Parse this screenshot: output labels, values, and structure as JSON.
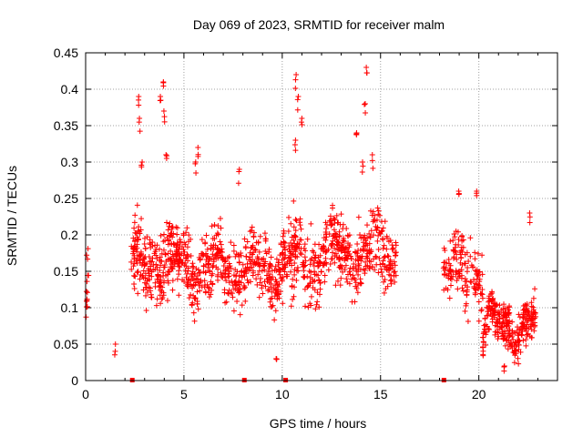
{
  "chart_data": {
    "type": "scatter",
    "title": "Day 069 of 2023, SRMTID for receiver malm",
    "xlabel": "GPS time / hours",
    "ylabel": "SRMTID / TECUs",
    "xlim": [
      0,
      24
    ],
    "ylim": [
      0,
      0.45
    ],
    "grid": true,
    "marker": "+",
    "marker_color": "#ff0000",
    "x_ticks": [
      0,
      5,
      10,
      15,
      20
    ],
    "x_tick_labels": [
      "0",
      "5",
      "10",
      "15",
      "20"
    ],
    "y_ticks": [
      0,
      0.05,
      0.1,
      0.15,
      0.2,
      0.25,
      0.3,
      0.35,
      0.4,
      0.45
    ],
    "y_tick_labels": [
      "0",
      "0.05",
      "0.1",
      "0.15",
      "0.2",
      "0.25",
      "0.3",
      "0.35",
      "0.4",
      "0.45"
    ],
    "baseline_markers_x": [
      2.35,
      8.05,
      10.15,
      18.2
    ],
    "segments": [
      {
        "x_start": 0.0,
        "x_end": 0.15,
        "y_mean": 0.12,
        "y_spread": 0.045,
        "n": 14
      },
      {
        "x_start": 2.3,
        "x_end": 5.2,
        "y_mean": 0.16,
        "y_spread": 0.05,
        "n": 300
      },
      {
        "x_start": 5.2,
        "x_end": 10.0,
        "y_mean": 0.155,
        "y_spread": 0.045,
        "n": 420
      },
      {
        "x_start": 10.0,
        "x_end": 12.0,
        "y_mean": 0.16,
        "y_spread": 0.05,
        "n": 180
      },
      {
        "x_start": 12.0,
        "x_end": 15.8,
        "y_mean": 0.175,
        "y_spread": 0.045,
        "n": 340
      },
      {
        "x_start": 18.2,
        "x_end": 20.2,
        "y_mean": 0.15,
        "y_spread": 0.045,
        "n": 150
      },
      {
        "x_start": 20.2,
        "x_end": 22.9,
        "y_mean": 0.075,
        "y_spread": 0.03,
        "n": 300
      }
    ],
    "highlights": [
      {
        "x": 1.5,
        "y": 0.05
      },
      {
        "x": 2.45,
        "y": 0.18
      },
      {
        "x": 2.7,
        "y": 0.39
      },
      {
        "x": 2.75,
        "y": 0.36
      },
      {
        "x": 2.85,
        "y": 0.3
      },
      {
        "x": 3.8,
        "y": 0.39
      },
      {
        "x": 3.95,
        "y": 0.41
      },
      {
        "x": 4.0,
        "y": 0.37
      },
      {
        "x": 4.1,
        "y": 0.31
      },
      {
        "x": 5.7,
        "y": 0.32
      },
      {
        "x": 5.6,
        "y": 0.3
      },
      {
        "x": 7.8,
        "y": 0.29
      },
      {
        "x": 10.7,
        "y": 0.42
      },
      {
        "x": 10.8,
        "y": 0.39
      },
      {
        "x": 10.65,
        "y": 0.33
      },
      {
        "x": 11.0,
        "y": 0.36
      },
      {
        "x": 13.8,
        "y": 0.34
      },
      {
        "x": 14.1,
        "y": 0.3
      },
      {
        "x": 14.3,
        "y": 0.43
      },
      {
        "x": 14.2,
        "y": 0.38
      },
      {
        "x": 14.6,
        "y": 0.31
      },
      {
        "x": 19.0,
        "y": 0.26
      },
      {
        "x": 19.9,
        "y": 0.26
      },
      {
        "x": 22.6,
        "y": 0.23
      },
      {
        "x": 9.7,
        "y": 0.03
      },
      {
        "x": 21.3,
        "y": 0.02
      }
    ]
  }
}
